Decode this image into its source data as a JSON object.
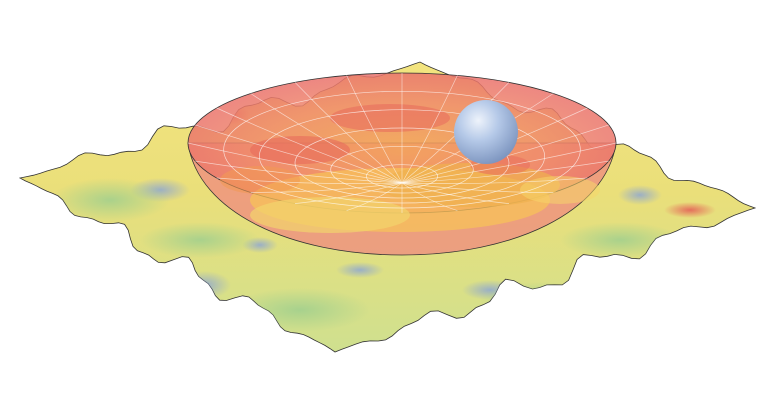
{
  "figure": {
    "description_visible_text": "",
    "colors": {
      "surface_low": "#c9dc8a",
      "surface_mid": "#f0e27a",
      "surface_high": "#f6b35a",
      "surface_peak": "#e9645a",
      "surface_valley": "#8fa8cf",
      "bowl_fill": "#f07f7f",
      "bowl_rim": "#b04a4a",
      "bowl_grid": "#ffffff",
      "sphere": "#a9c2e6",
      "outline": "#333333"
    },
    "elements": {
      "terrain": "noisy-landscape-surface",
      "bowl": "paraboloid-bowl",
      "ball": "sphere"
    }
  }
}
